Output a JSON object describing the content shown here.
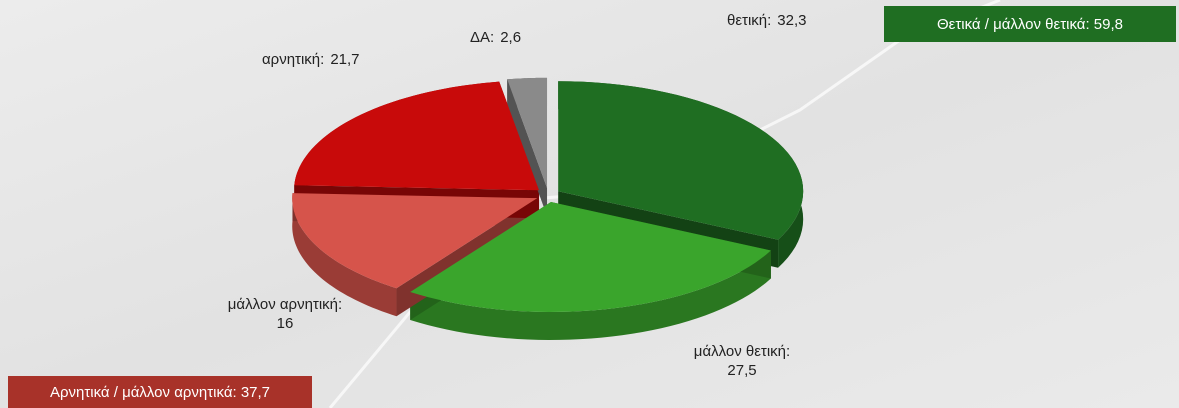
{
  "chart_data": {
    "type": "pie3d",
    "categories": [
      "θετική:",
      "μάλλον θετική:",
      "μάλλον αρνητική:",
      "αρνητική:",
      "ΔΑ:"
    ],
    "values": [
      32.3,
      27.5,
      16,
      21.7,
      2.6
    ],
    "value_labels": [
      "32,3",
      "27,5",
      "16",
      "21,7",
      "2,6"
    ],
    "colors": [
      "#1f6e22",
      "#3aa52c",
      "#d6544b",
      "#c80a0a",
      "#8a8a8a"
    ],
    "annotations": [
      {
        "text": "Θετικά / μάλλον θετικά: 59,8",
        "color": "#1f6e22"
      },
      {
        "text": "Αρνητικά / μάλλον αρνητικά: 37,7",
        "color": "#a83229"
      }
    ]
  }
}
